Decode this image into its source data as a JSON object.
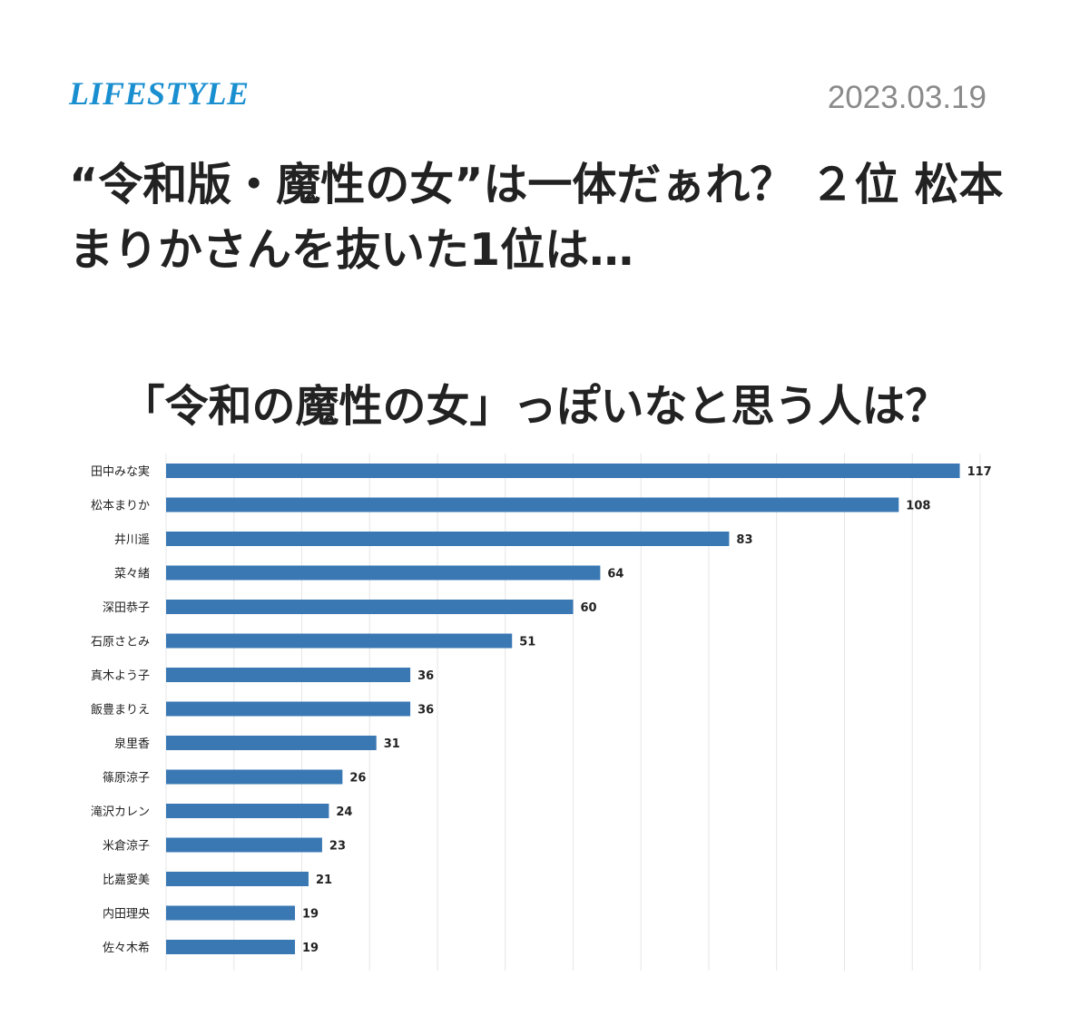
{
  "article": {
    "category": "LIFESTYLE",
    "date": "2023.03.19",
    "headline": "“令和版・魔性の女”は一体だぁれ？ ２位 松本まりかさんを抜いた1位は…"
  },
  "chart_data": {
    "type": "bar",
    "orientation": "horizontal",
    "title": "「令和の魔性の女」っぽいなと思う人は？",
    "categories": [
      "田中みな実",
      "松本まりか",
      "井川遥",
      "菜々緒",
      "深田恭子",
      "石原さとみ",
      "真木よう子",
      "飯豊まりえ",
      "泉里香",
      "篠原涼子",
      "滝沢カレン",
      "米倉涼子",
      "比嘉愛美",
      "内田理央",
      "佐々木希"
    ],
    "values": [
      117,
      108,
      83,
      64,
      60,
      51,
      36,
      36,
      31,
      26,
      24,
      23,
      21,
      19,
      19
    ],
    "xlim": [
      0,
      120
    ],
    "grid": true,
    "bar_color": "#3a78b4",
    "grid_color": "#e6e6e6"
  }
}
